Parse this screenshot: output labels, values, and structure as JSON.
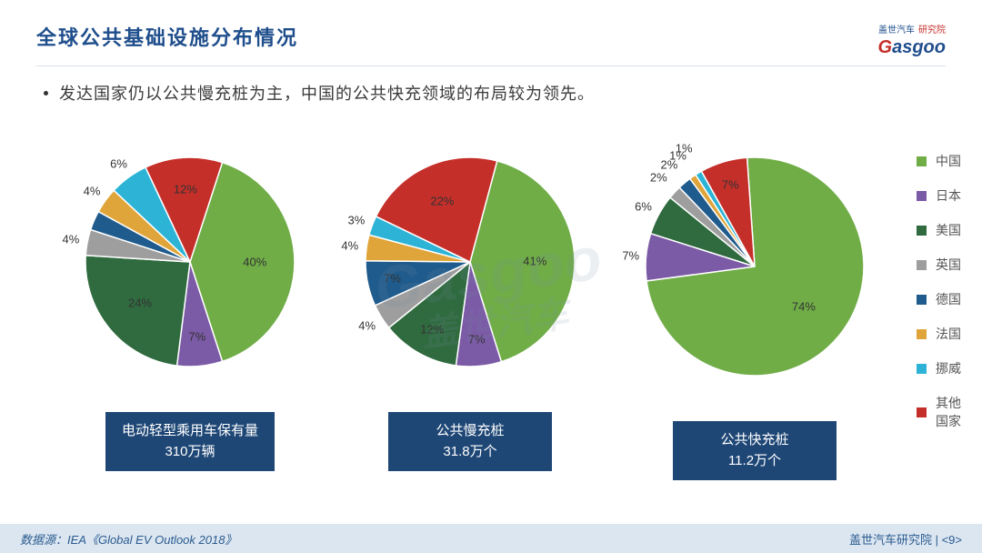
{
  "page": {
    "title": "全球公共基础设施分布情况",
    "bullet": "发达国家仍以公共慢充桩为主，中国的公共快充领域的布局较为领先。",
    "source": "数据源：IEA《Global EV Outlook 2018》",
    "footer_right": "盖世汽车研究院 | <9>",
    "logo_top_a": "盖世汽车",
    "logo_top_b": "研究院",
    "logo_main_g": "G",
    "logo_main_rest": "asgoo",
    "watermark_en": "Gasgoo",
    "watermark_cn": "盖世汽车"
  },
  "colors": {
    "china": "#70ad47",
    "japan": "#7b5aa6",
    "usa": "#2f6b3f",
    "uk": "#9e9e9e",
    "germany": "#1f5b8c",
    "france": "#e0a53a",
    "norway": "#2cb3d6",
    "other": "#c52f2a",
    "title": "#1f4e8c",
    "caption_bg": "#1f4776",
    "footer_bg": "#dbe6f1"
  },
  "legend": [
    {
      "key": "china",
      "label": "中国"
    },
    {
      "key": "japan",
      "label": "日本"
    },
    {
      "key": "usa",
      "label": "美国"
    },
    {
      "key": "uk",
      "label": "英国"
    },
    {
      "key": "germany",
      "label": "德国"
    },
    {
      "key": "france",
      "label": "法国"
    },
    {
      "key": "norway",
      "label": "挪威"
    },
    {
      "key": "other",
      "label": "其他国家"
    }
  ],
  "charts": [
    {
      "radius": 115,
      "caption_line1": "电动轻型乘用车保有量",
      "caption_line2": "310万辆",
      "start_angle": -72,
      "slices": [
        {
          "key": "china",
          "value": 40,
          "label": "40%",
          "label_r": 0.62
        },
        {
          "key": "japan",
          "value": 7,
          "label": "7%",
          "label_r": 0.72
        },
        {
          "key": "usa",
          "value": 24,
          "label": "24%",
          "label_r": 0.62
        },
        {
          "key": "uk",
          "value": 4,
          "label": "4%",
          "label_r": 1.16
        },
        {
          "key": "germany",
          "value": 3,
          "label": "",
          "label_r": 1.16
        },
        {
          "key": "france",
          "value": 4,
          "label": "4%",
          "label_r": 1.16
        },
        {
          "key": "norway",
          "value": 6,
          "label": "6%",
          "label_r": 1.16
        },
        {
          "key": "other",
          "value": 12,
          "label": "12%",
          "label_r": 0.7
        }
      ]
    },
    {
      "radius": 115,
      "caption_line1": "公共慢充桩",
      "caption_line2": "31.8万个",
      "start_angle": -75,
      "slices": [
        {
          "key": "china",
          "value": 41,
          "label": "41%",
          "label_r": 0.62
        },
        {
          "key": "japan",
          "value": 7,
          "label": "7%",
          "label_r": 0.74
        },
        {
          "key": "usa",
          "value": 12,
          "label": "12%",
          "label_r": 0.74
        },
        {
          "key": "uk",
          "value": 4,
          "label": "4%",
          "label_r": 1.16
        },
        {
          "key": "germany",
          "value": 7,
          "label": "7%",
          "label_r": 0.76
        },
        {
          "key": "france",
          "value": 4,
          "label": "4%",
          "label_r": 1.16
        },
        {
          "key": "norway",
          "value": 3,
          "label": "3%",
          "label_r": 1.16
        },
        {
          "key": "other",
          "value": 22,
          "label": "22%",
          "label_r": 0.64
        }
      ]
    },
    {
      "radius": 120,
      "caption_line1": "公共快充桩",
      "caption_line2": "11.2万个",
      "start_angle": -94,
      "slices": [
        {
          "key": "china",
          "value": 74,
          "label": "74%",
          "label_r": 0.58
        },
        {
          "key": "japan",
          "value": 7,
          "label": "7%",
          "label_r": 1.14
        },
        {
          "key": "usa",
          "value": 6,
          "label": "6%",
          "label_r": 1.16
        },
        {
          "key": "uk",
          "value": 2,
          "label": "2%",
          "label_r": 1.2
        },
        {
          "key": "germany",
          "value": 2,
          "label": "2%",
          "label_r": 1.22
        },
        {
          "key": "france",
          "value": 1,
          "label": "1%",
          "label_r": 1.24
        },
        {
          "key": "norway",
          "value": 1,
          "label": "1%",
          "label_r": 1.26
        },
        {
          "key": "other",
          "value": 7,
          "label": "7%",
          "label_r": 0.78
        }
      ]
    }
  ]
}
